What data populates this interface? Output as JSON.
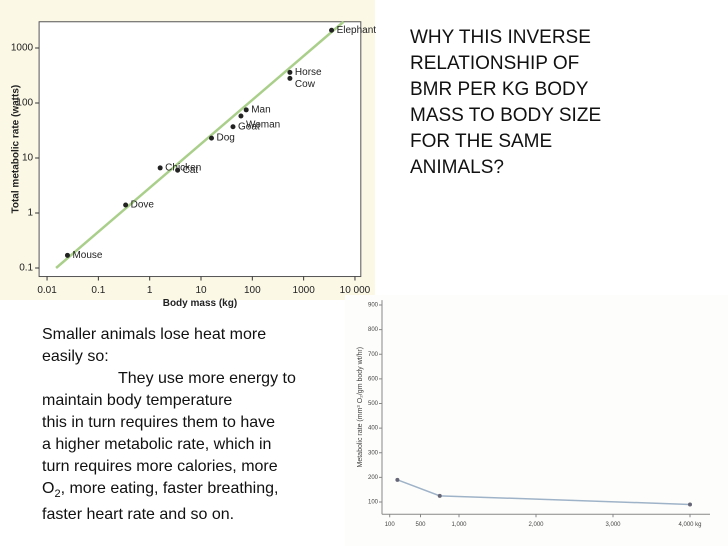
{
  "chart_data": [
    {
      "type": "scatter",
      "xscale": "log",
      "yscale": "log",
      "xlabel": "Body mass (kg)",
      "ylabel": "Total metabolic rate (watts)",
      "xlim": [
        0.007,
        13000
      ],
      "ylim": [
        0.07,
        3000
      ],
      "xticks": [
        {
          "value": 0.01,
          "label": "0.01"
        },
        0.1,
        1,
        10,
        100,
        1000,
        {
          "value": 10000,
          "label": "10 000"
        }
      ],
      "yticks": [
        0.1,
        1,
        10,
        100,
        1000
      ],
      "color": "#222222",
      "line_color": "#a9cf8a",
      "points": [
        {
          "label": "Mouse",
          "x": 0.025,
          "y": 0.17
        },
        {
          "label": "Dove",
          "x": 0.34,
          "y": 1.4
        },
        {
          "label": "Chicken",
          "x": 1.6,
          "y": 6.6
        },
        {
          "label": "Cat",
          "x": 3.5,
          "y": 6
        },
        {
          "label": "Dog",
          "x": 16,
          "y": 23
        },
        {
          "label": "Goat",
          "x": 42,
          "y": 37
        },
        {
          "label": "Woman",
          "x": 60,
          "y": 58
        },
        {
          "label": "Man",
          "x": 76,
          "y": 75
        },
        {
          "label": "Cow",
          "x": 540,
          "y": 280
        },
        {
          "label": "Horse",
          "x": 540,
          "y": 360
        },
        {
          "label": "Elephant",
          "x": 3500,
          "y": 2100
        }
      ]
    },
    {
      "type": "line",
      "ylabel": "Metabolic rate (mm³ O₂/gm body wt/hr)",
      "xlim": [
        0,
        4000
      ],
      "ylim": [
        50,
        920
      ],
      "xticks": [
        100,
        500,
        {
          "value": 1000,
          "label": "1,000"
        },
        {
          "value": 2000,
          "label": "2,000"
        },
        {
          "value": 3000,
          "label": "3,000"
        },
        {
          "value": 4000,
          "label": "4,000 kg"
        }
      ],
      "yticks": [
        100,
        200,
        300,
        400,
        500,
        600,
        700,
        800,
        900
      ],
      "x": [
        200,
        750,
        4000
      ],
      "values": [
        190,
        125,
        90
      ],
      "color": "#9fb3c8"
    }
  ],
  "question": [
    "WHY THIS INVERSE",
    "RELATIONSHIP OF",
    "BMR PER KG BODY",
    "MASS TO BODY SIZE",
    "FOR THE SAME",
    "ANIMALS?"
  ],
  "body": [
    "Smaller animals lose heat more",
    "easily so:",
    "They use more energy to",
    "maintain body temperature",
    "this in turn requires them to have",
    "a higher metabolic rate, which in",
    "turn requires more calories, more",
    "O",
    "2",
    ", more eating, faster breathing,",
    "faster heart rate and so on."
  ]
}
